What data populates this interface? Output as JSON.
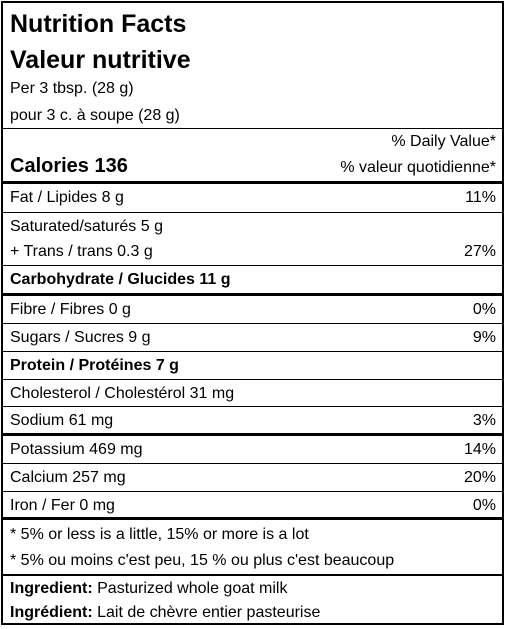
{
  "title_en": "Nutrition Facts",
  "title_fr": "Valeur nutritive",
  "serving_en": "Per 3 tbsp. (28 g)",
  "serving_fr": "pour 3 c. à soupe (28 g)",
  "dv_header_en": "% Daily Value*",
  "dv_header_fr": "% valeur quotidienne*",
  "calories": "Calories 136",
  "rows": {
    "fat": {
      "label": "Fat / Lipides 8 g",
      "dv": "11%"
    },
    "saturated": {
      "label": "Saturated/saturés 5 g"
    },
    "trans": {
      "label": "+ Trans / trans 0.3 g",
      "dv": "27%"
    },
    "carbs": {
      "label": "Carbohydrate / Glucides 11 g"
    },
    "fibre": {
      "label": "Fibre / Fibres 0 g",
      "dv": "0%"
    },
    "sugars": {
      "label": "Sugars / Sucres 9 g",
      "dv": "9%"
    },
    "protein": {
      "label": "Protein / Protéines 7 g"
    },
    "cholesterol": {
      "label": "Cholesterol / Cholestérol 31 mg"
    },
    "sodium": {
      "label": "Sodium 61 mg",
      "dv": "3%"
    },
    "potassium": {
      "label": "Potassium 469 mg",
      "dv": "14%"
    },
    "calcium": {
      "label": "Calcium 257 mg",
      "dv": "20%"
    },
    "iron": {
      "label": "Iron / Fer 0 mg",
      "dv": "0%"
    }
  },
  "footnote_en": "* 5% or less is a little, 15% or more is a lot",
  "footnote_fr": "* 5% ou moins c'est peu, 15 % ou plus c'est beaucoup",
  "ingredient_en": {
    "label": "Ingredient:",
    "value": "Pasturized whole goat milk"
  },
  "ingredient_fr": {
    "label": "Ingrédient:",
    "value": "Lait de chèvre entier pasteurise"
  }
}
